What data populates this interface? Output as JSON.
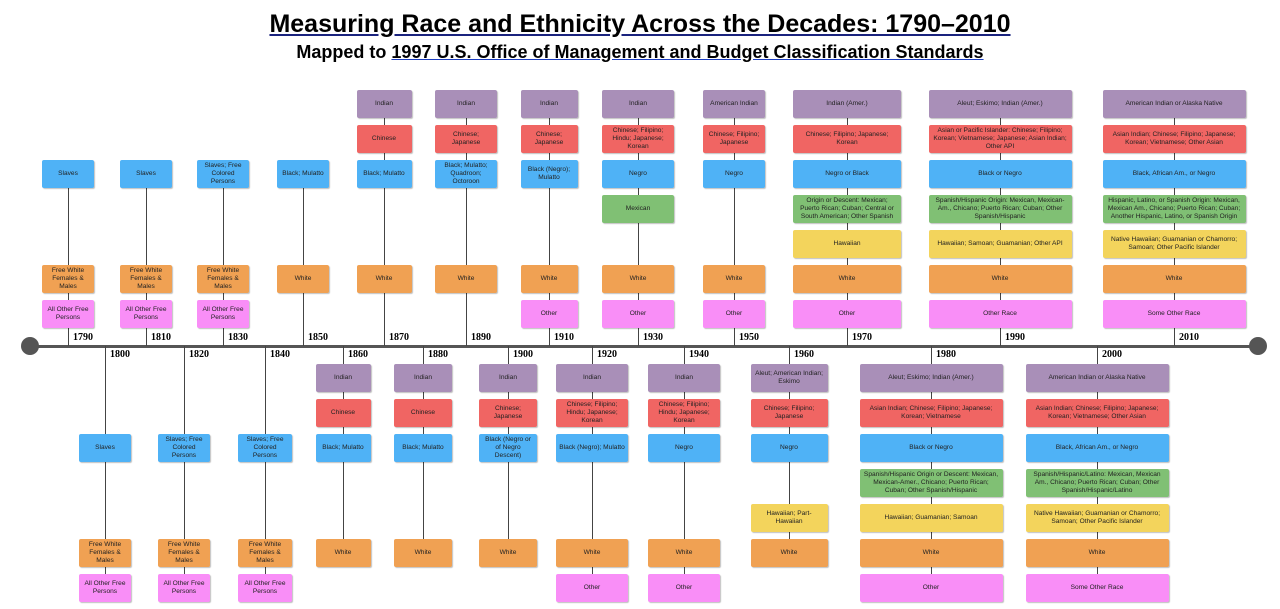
{
  "header": {
    "title": "Measuring Race and Ethnicity Across the Decades: 1790–2010",
    "subtitle_prefix": "Mapped to ",
    "subtitle_link": "1997 U.S. Office of Management and Budget Classification Standards"
  },
  "row_colors": [
    "#a98fb8",
    "#f06563",
    "#4fb2f6",
    "#80c074",
    "#f3d45c",
    "#f0a153",
    "#f98ef7"
  ],
  "decades": [
    {
      "year": "1790",
      "boxes": [
        null,
        null,
        "Slaves",
        null,
        null,
        "Free White Females & Males",
        "All Other Free Persons"
      ]
    },
    {
      "year": "1800",
      "boxes": [
        null,
        null,
        "Slaves",
        null,
        null,
        "Free White Females & Males",
        "All Other Free Persons"
      ]
    },
    {
      "year": "1810",
      "boxes": [
        null,
        null,
        "Slaves",
        null,
        null,
        "Free White Females & Males",
        "All Other Free Persons"
      ]
    },
    {
      "year": "1820",
      "boxes": [
        null,
        null,
        "Slaves; Free Colored Persons",
        null,
        null,
        "Free White Females & Males",
        "All Other Free Persons"
      ]
    },
    {
      "year": "1830",
      "boxes": [
        null,
        null,
        "Slaves; Free Colored Persons",
        null,
        null,
        "Free White Females & Males",
        "All Other Free Persons"
      ]
    },
    {
      "year": "1840",
      "boxes": [
        null,
        null,
        "Slaves; Free Colored Persons",
        null,
        null,
        "Free White Females & Males",
        "All Other Free Persons"
      ]
    },
    {
      "year": "1850",
      "boxes": [
        null,
        null,
        "Black; Mulatto",
        null,
        null,
        "White",
        null
      ]
    },
    {
      "year": "1860",
      "boxes": [
        "Indian",
        "Chinese",
        "Black; Mulatto",
        null,
        null,
        "White",
        null
      ]
    },
    {
      "year": "1870",
      "boxes": [
        "Indian",
        "Chinese",
        "Black; Mulatto",
        null,
        null,
        "White",
        null
      ]
    },
    {
      "year": "1880",
      "boxes": [
        "Indian",
        "Chinese",
        "Black; Mulatto",
        null,
        null,
        "White",
        null
      ]
    },
    {
      "year": "1890",
      "boxes": [
        "Indian",
        "Chinese; Japanese",
        "Black; Mulatto; Quadroon; Octoroon",
        null,
        null,
        "White",
        null
      ]
    },
    {
      "year": "1900",
      "boxes": [
        "Indian",
        "Chinese; Japanese",
        "Black (Negro or of Negro Descent)",
        null,
        null,
        "White",
        null
      ]
    },
    {
      "year": "1910",
      "boxes": [
        "Indian",
        "Chinese; Japanese",
        "Black (Negro); Mulatto",
        null,
        null,
        "White",
        "Other"
      ]
    },
    {
      "year": "1920",
      "boxes": [
        "Indian",
        "Chinese; Filipino; Hindu; Japanese; Korean",
        "Black (Negro); Mulatto",
        null,
        null,
        "White",
        "Other"
      ]
    },
    {
      "year": "1930",
      "boxes": [
        "Indian",
        "Chinese; Filipino; Hindu; Japanese; Korean",
        "Negro",
        "Mexican",
        null,
        "White",
        "Other"
      ]
    },
    {
      "year": "1940",
      "boxes": [
        "Indian",
        "Chinese; Filipino; Hindu; Japanese; Korean",
        "Negro",
        null,
        null,
        "White",
        "Other"
      ]
    },
    {
      "year": "1950",
      "boxes": [
        "American Indian",
        "Chinese; Filipino; Japanese",
        "Negro",
        null,
        null,
        "White",
        "Other"
      ]
    },
    {
      "year": "1960",
      "boxes": [
        "Aleut; American Indian; Eskimo",
        "Chinese; Filipino; Japanese",
        "Negro",
        null,
        "Hawaiian; Part-Hawaiian",
        "White",
        null
      ]
    },
    {
      "year": "1970",
      "boxes": [
        "Indian (Amer.)",
        "Chinese; Filipino; Japanese; Korean",
        "Negro or Black",
        "Origin or Descent: Mexican; Puerto Rican; Cuban; Central or South American; Other Spanish",
        "Hawaiian",
        "White",
        "Other"
      ]
    },
    {
      "year": "1980",
      "boxes": [
        "Aleut; Eskimo; Indian (Amer.)",
        "Asian Indian; Chinese; Filipino; Japanese; Korean; Vietnamese",
        "Black or Negro",
        "Spanish/Hispanic Origin or Descent: Mexican, Mexican-Amer., Chicano; Puerto Rican; Cuban; Other Spanish/Hispanic",
        "Hawaiian; Guamanian; Samoan",
        "White",
        "Other"
      ]
    },
    {
      "year": "1990",
      "boxes": [
        "Aleut; Eskimo; Indian (Amer.)",
        "Asian or Pacific Islander: Chinese; Filipino; Korean; Vietnamese; Japanese; Asian Indian; Other API",
        "Black or Negro",
        "Spanish/Hispanic Origin: Mexican, Mexican-Am., Chicano; Puerto Rican; Cuban; Other Spanish/Hispanic",
        "Hawaiian; Samoan; Guamanian; Other API",
        "White",
        "Other Race"
      ]
    },
    {
      "year": "2000",
      "boxes": [
        "American Indian or Alaska Native",
        "Asian Indian; Chinese; Filipino; Japanese; Korean; Vietnamese; Other Asian",
        "Black, African Am., or Negro",
        "Spanish/Hispanic/Latino: Mexican, Mexican Am., Chicano; Puerto Rican; Cuban; Other Spanish/Hispanic/Latino",
        "Native Hawaiian; Guamanian or Chamorro; Samoan; Other Pacific Islander",
        "White",
        "Some Other Race"
      ]
    },
    {
      "year": "2010",
      "boxes": [
        "American Indian or Alaska Native",
        "Asian Indian; Chinese; Filipino; Japanese; Korean; Vietnamese; Other Asian",
        "Black, African Am., or Negro",
        "Hispanic, Latino, or Spanish Origin: Mexican, Mexican Am., Chicano; Puerto Rican; Cuban; Another Hispanic, Latino, or Spanish Origin",
        "Native Hawaiian; Guamanian or Chamorro; Samoan; Other Pacific Islander",
        "White",
        "Some Other Race"
      ]
    }
  ]
}
